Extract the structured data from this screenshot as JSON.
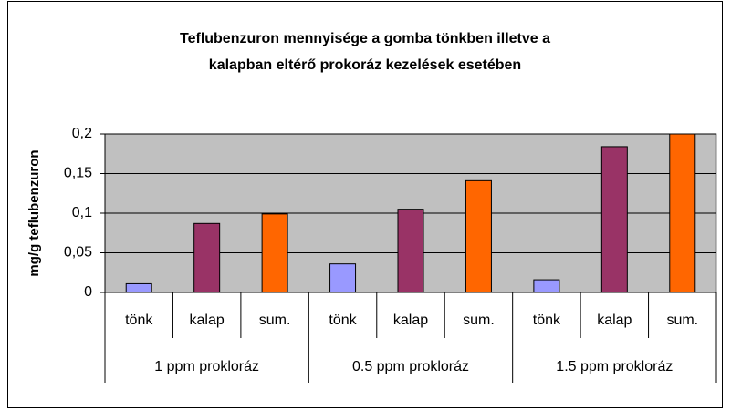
{
  "chart_data": {
    "type": "bar",
    "title": [
      "Teflubenzuron mennyisége a gomba tönkben illetve a",
      "kalapban eltérő prokoráz kezelések esetében"
    ],
    "y_label": "mg/g teflubenzuron",
    "groups": [
      "1 ppm prokloráz",
      "0.5 ppm prokloráz",
      "1.5 ppm prokloráz"
    ],
    "categories": [
      "tönk",
      "kalap",
      "sum.",
      "tönk",
      "kalap",
      "sum.",
      "tönk",
      "kalap",
      "sum."
    ],
    "values": [
      0.011,
      0.087,
      0.099,
      0.036,
      0.105,
      0.141,
      0.016,
      0.184,
      0.2
    ],
    "colors": [
      "#9999ff",
      "#993366",
      "#ff6600",
      "#9999ff",
      "#993366",
      "#ff6600",
      "#9999ff",
      "#993366",
      "#ff6600"
    ],
    "ylim": [
      0,
      0.2
    ],
    "yticks": [
      0,
      {
        "value": 0.05,
        "label": "0,05"
      },
      {
        "value": 0.1,
        "label": "0,1"
      },
      {
        "value": 0.15,
        "label": "0,15"
      },
      {
        "value": 0.2,
        "label": "0,2"
      }
    ],
    "grid": true
  }
}
